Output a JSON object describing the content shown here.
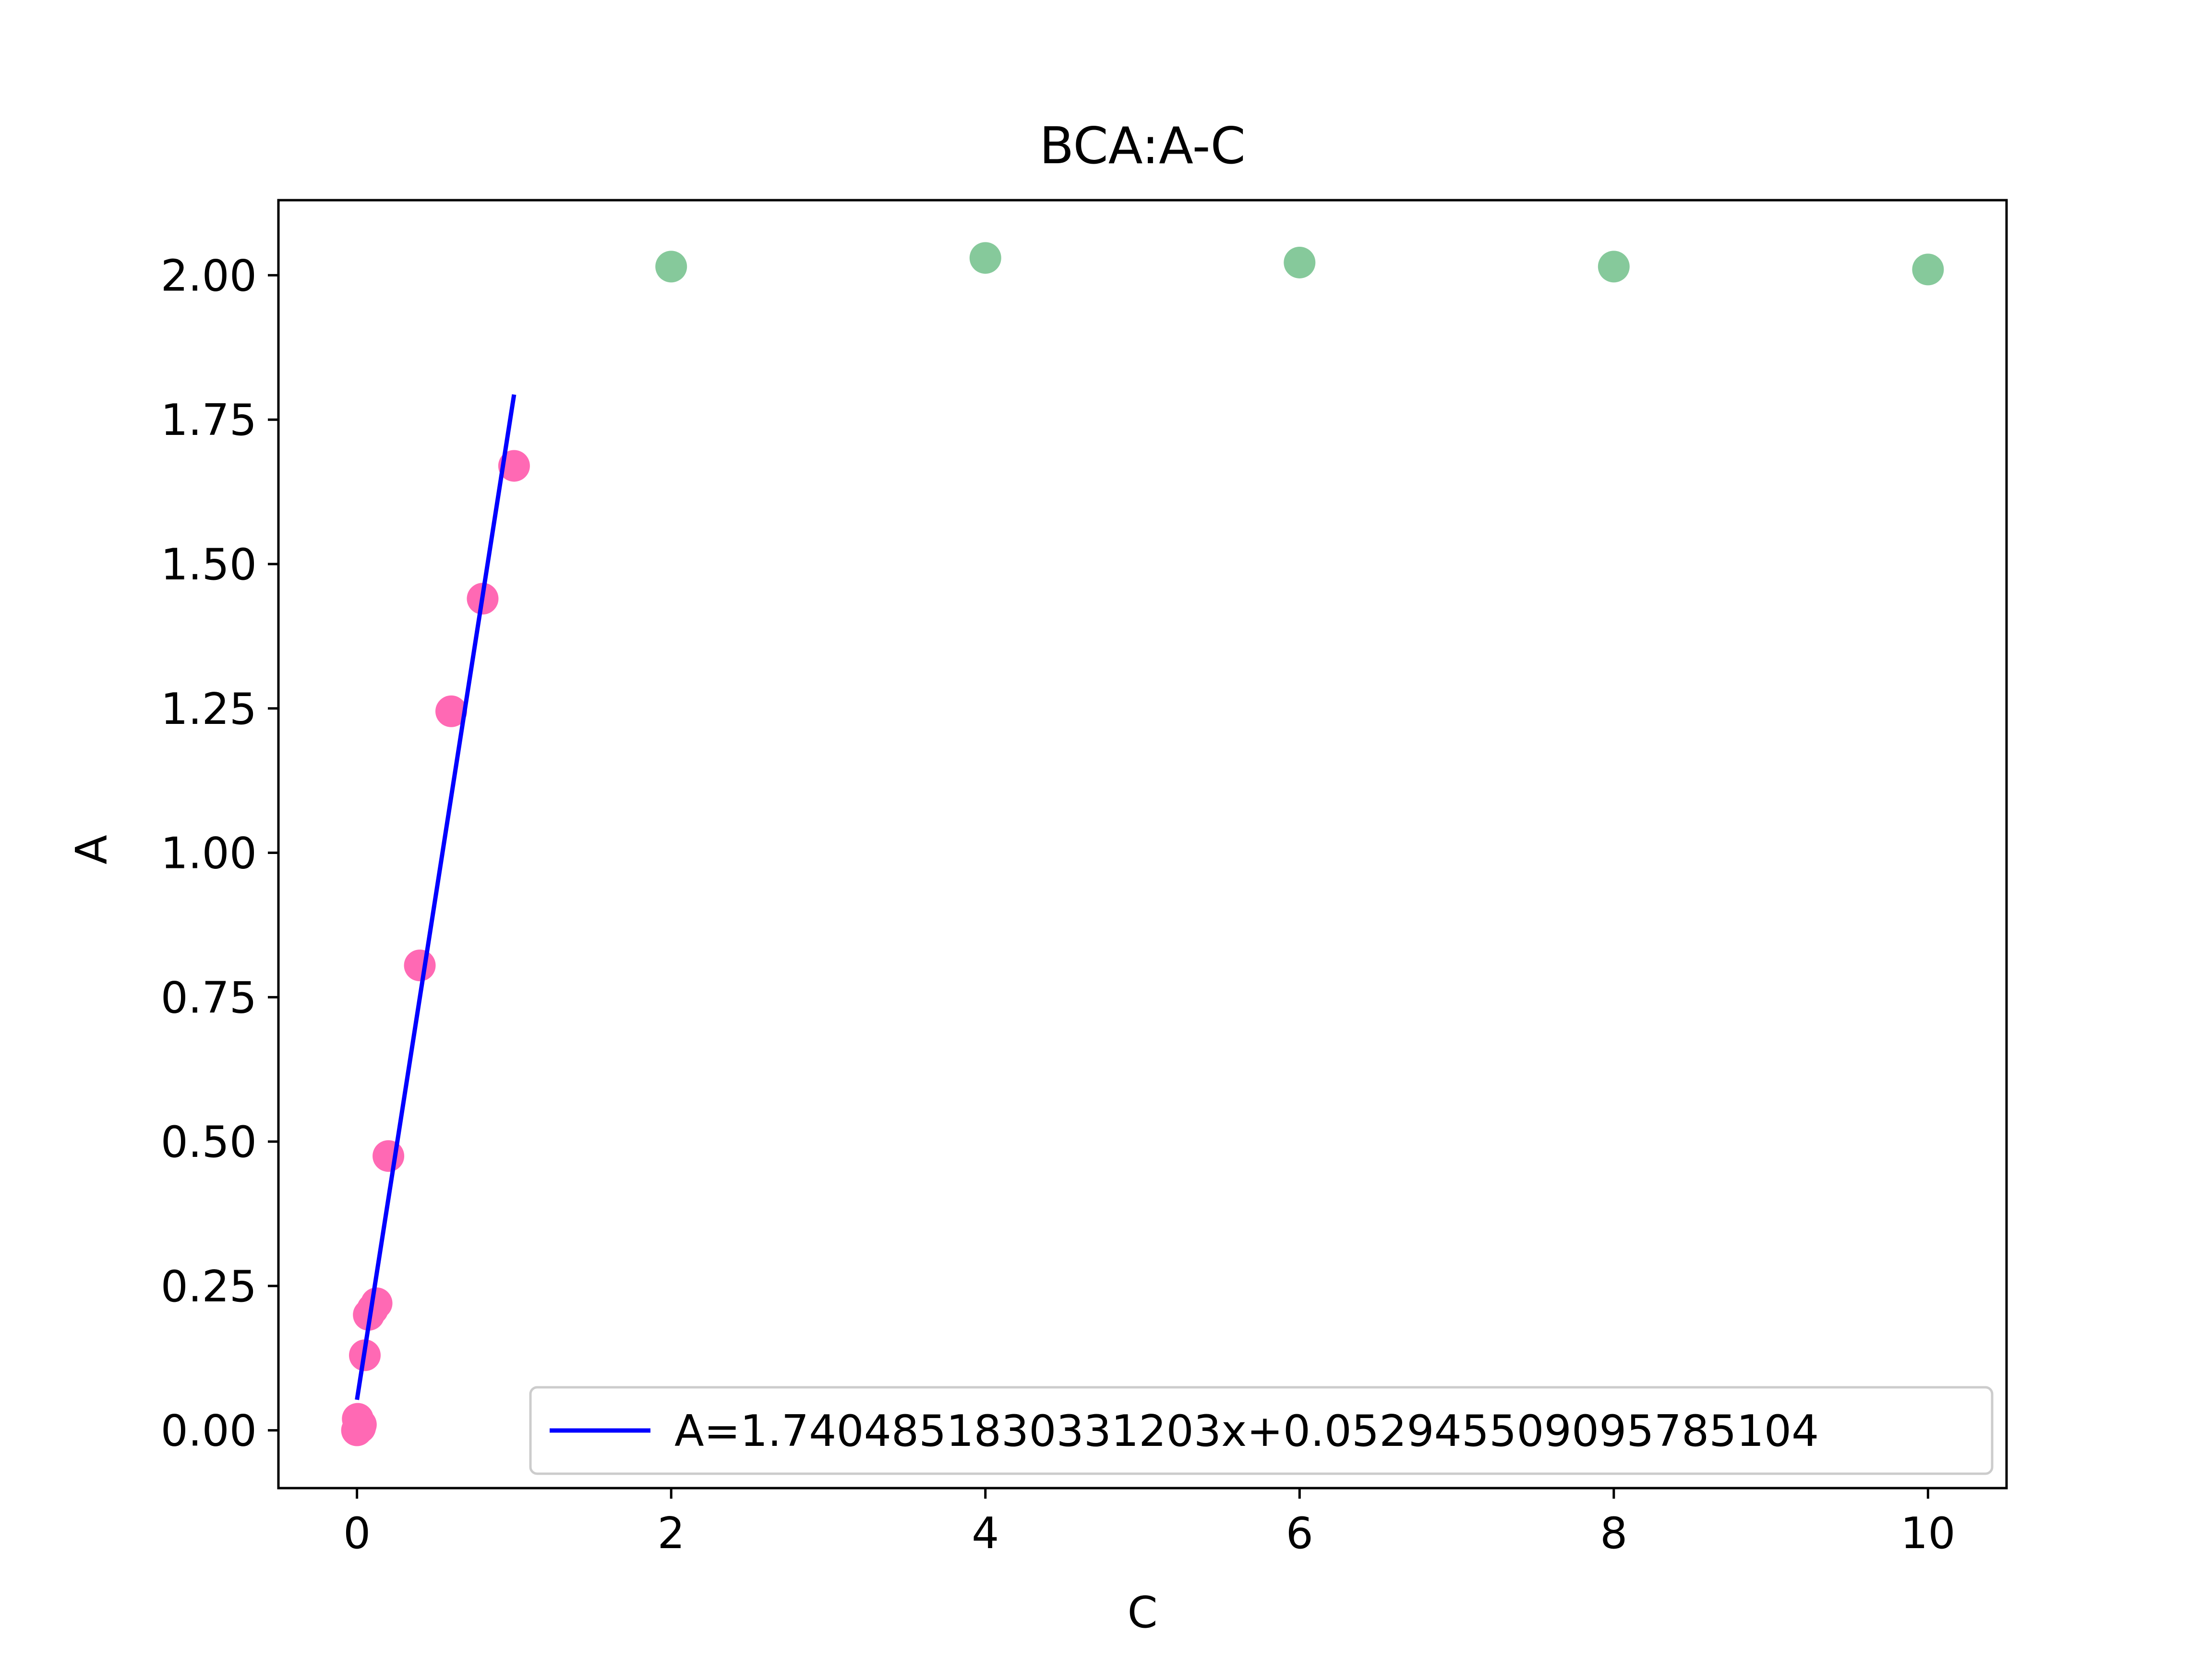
{
  "chart_data": {
    "type": "scatter",
    "title": "BCA:A-C",
    "xlabel": "C",
    "ylabel": "A",
    "xlim": [
      -0.5,
      10.5
    ],
    "ylim": [
      -0.1,
      2.13
    ],
    "x_ticks": [
      0,
      2,
      4,
      6,
      8,
      10
    ],
    "x_tick_labels": [
      "0",
      "2",
      "4",
      "6",
      "8",
      "10"
    ],
    "y_ticks": [
      0,
      0.25,
      0.5,
      0.75,
      1.0,
      1.25,
      1.5,
      1.75,
      2.0
    ],
    "y_tick_labels": [
      "0.00",
      "0.25",
      "0.50",
      "0.75",
      "1.00",
      "1.25",
      "1.50",
      "1.75",
      "2.00"
    ],
    "grid": false,
    "legend_placement": "lower-right",
    "series": [
      {
        "type": "scatter",
        "color": "#ff69b4",
        "x": [
          0,
          0.005,
          0.01,
          0.02,
          0.025,
          0.05,
          0.075,
          0.1,
          0.125,
          0.2,
          0.4,
          0.6,
          0.8,
          1.0
        ],
        "y": [
          0.0,
          0.02,
          0.015,
          0.005,
          0.01,
          0.13,
          0.2,
          0.21,
          0.22,
          0.475,
          0.805,
          1.245,
          1.44,
          1.67
        ]
      },
      {
        "type": "scatter",
        "color": "#86c99b",
        "x": [
          2,
          4,
          6,
          8,
          10
        ],
        "y": [
          2.015,
          2.03,
          2.022,
          2.015,
          2.01
        ]
      },
      {
        "type": "line",
        "name": "A=1.7404851830331203x+0.052945509095785104",
        "color": "#0000ff",
        "x": [
          0,
          1.0
        ],
        "y": [
          0.052945509095785104,
          1.7934306921289054
        ]
      }
    ]
  }
}
